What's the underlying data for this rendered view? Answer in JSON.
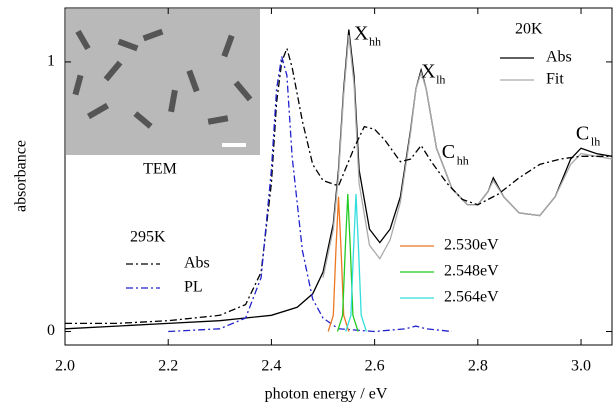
{
  "chart_data": {
    "type": "line",
    "xlabel": "photon energy / eV",
    "ylabel": "absorbance",
    "xlim": [
      2.0,
      3.06
    ],
    "ylim": [
      -0.05,
      1.2
    ],
    "xticks": [
      {
        "value": 2.0,
        "label": "2.0"
      },
      2.2,
      2.4,
      2.6,
      2.8,
      {
        "value": 3.0,
        "label": "3.0"
      }
    ],
    "yticks": [
      0,
      1
    ],
    "legend_titles": [
      "20K",
      "295K"
    ],
    "inset_label": "TEM",
    "annotations": [
      {
        "text": "X",
        "sub": "hh",
        "x": 2.56,
        "y": 1.1
      },
      {
        "text": "X",
        "sub": "lh",
        "x": 2.69,
        "y": 0.96
      },
      {
        "text": "C",
        "sub": "hh",
        "x": 2.73,
        "y": 0.66
      },
      {
        "text": "C",
        "sub": "lh",
        "x": 2.99,
        "y": 0.73
      }
    ],
    "series": [
      {
        "name": "Abs",
        "color": "#000000",
        "dash": "solid",
        "x": [
          2.0,
          2.1,
          2.2,
          2.3,
          2.4,
          2.45,
          2.48,
          2.5,
          2.52,
          2.53,
          2.54,
          2.55,
          2.56,
          2.57,
          2.59,
          2.61,
          2.63,
          2.65,
          2.67,
          2.68,
          2.69,
          2.7,
          2.72,
          2.75,
          2.78,
          2.8,
          2.82,
          2.83,
          2.85,
          2.88,
          2.92,
          2.95,
          2.98,
          3.0,
          3.03,
          3.06
        ],
        "values": [
          0.01,
          0.02,
          0.03,
          0.04,
          0.06,
          0.09,
          0.14,
          0.22,
          0.4,
          0.6,
          0.9,
          1.12,
          0.95,
          0.6,
          0.38,
          0.33,
          0.38,
          0.5,
          0.75,
          0.9,
          0.97,
          0.9,
          0.68,
          0.53,
          0.47,
          0.47,
          0.52,
          0.57,
          0.5,
          0.44,
          0.43,
          0.5,
          0.64,
          0.68,
          0.66,
          0.65
        ]
      },
      {
        "name": "Fit",
        "color": "#aaaaaa",
        "dash": "solid",
        "x": [
          2.5,
          2.52,
          2.53,
          2.54,
          2.55,
          2.56,
          2.57,
          2.59,
          2.61,
          2.63,
          2.65,
          2.67,
          2.68,
          2.69,
          2.7,
          2.72,
          2.75,
          2.78,
          2.8,
          2.82,
          2.83,
          2.85,
          2.88,
          2.92,
          2.95,
          2.98,
          3.0,
          3.03,
          3.06
        ],
        "values": [
          0.2,
          0.38,
          0.58,
          0.88,
          1.1,
          0.92,
          0.55,
          0.32,
          0.27,
          0.34,
          0.48,
          0.74,
          0.9,
          0.96,
          0.9,
          0.68,
          0.53,
          0.47,
          0.47,
          0.52,
          0.56,
          0.5,
          0.44,
          0.43,
          0.5,
          0.62,
          0.66,
          0.65,
          0.64
        ]
      },
      {
        "name": "Abs",
        "color": "#000000",
        "dash": "dashdot",
        "x": [
          2.0,
          2.1,
          2.2,
          2.3,
          2.35,
          2.38,
          2.4,
          2.41,
          2.42,
          2.43,
          2.44,
          2.46,
          2.48,
          2.5,
          2.53,
          2.56,
          2.58,
          2.6,
          2.62,
          2.65,
          2.67,
          2.69,
          2.71,
          2.74,
          2.77,
          2.8,
          2.84,
          2.88,
          2.92,
          2.96,
          3.0,
          3.06
        ],
        "values": [
          0.03,
          0.03,
          0.04,
          0.06,
          0.1,
          0.22,
          0.55,
          0.85,
          1.0,
          1.05,
          0.98,
          0.78,
          0.62,
          0.56,
          0.54,
          0.68,
          0.76,
          0.75,
          0.71,
          0.63,
          0.64,
          0.69,
          0.63,
          0.55,
          0.49,
          0.47,
          0.51,
          0.57,
          0.62,
          0.64,
          0.65,
          0.65
        ]
      },
      {
        "name": "PL",
        "color": "#2222cc",
        "dash": "dashdot",
        "x": [
          2.2,
          2.3,
          2.35,
          2.38,
          2.4,
          2.41,
          2.42,
          2.43,
          2.44,
          2.46,
          2.48,
          2.5,
          2.53,
          2.6,
          2.66,
          2.68,
          2.7,
          2.75
        ],
        "values": [
          0.0,
          0.01,
          0.05,
          0.2,
          0.6,
          0.9,
          1.02,
          0.95,
          0.65,
          0.3,
          0.12,
          0.05,
          0.01,
          0.0,
          0.01,
          0.02,
          0.01,
          0.0
        ]
      },
      {
        "name": "2.530eV",
        "color": "#ee7722",
        "dash": "solid",
        "x": [
          2.51,
          2.52,
          2.525,
          2.53,
          2.535,
          2.54,
          2.55
        ],
        "values": [
          0.0,
          0.06,
          0.3,
          0.5,
          0.3,
          0.06,
          0.0
        ]
      },
      {
        "name": "2.548eV",
        "color": "#22cc22",
        "dash": "solid",
        "x": [
          2.528,
          2.538,
          2.543,
          2.548,
          2.553,
          2.558,
          2.568
        ],
        "values": [
          0.0,
          0.06,
          0.3,
          0.51,
          0.3,
          0.06,
          0.0
        ]
      },
      {
        "name": "2.564eV",
        "color": "#33dddd",
        "dash": "solid",
        "x": [
          2.544,
          2.554,
          2.559,
          2.564,
          2.569,
          2.574,
          2.584
        ],
        "values": [
          0.0,
          0.06,
          0.3,
          0.51,
          0.3,
          0.06,
          0.0
        ]
      }
    ]
  }
}
